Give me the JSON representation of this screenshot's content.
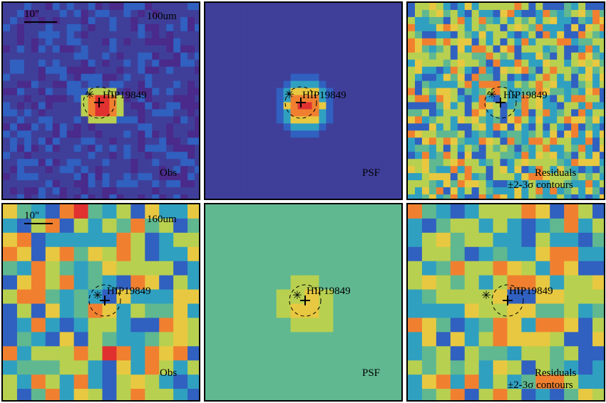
{
  "figure": {
    "top_row": {
      "scale_bar_label": "10\"",
      "band": "100um",
      "target": "HIP19849",
      "obs_label": "Obs",
      "psf_label": "PSF",
      "residual_label": "Residuals",
      "contour_label": "±2-3σ contours"
    },
    "bottom_row": {
      "scale_bar_label": "10\"",
      "band": "160um",
      "target": "HIP19849",
      "obs_label": "Obs",
      "psf_label": "PSF",
      "residual_label": "Residuals",
      "contour_label": "±2-3σ contours"
    }
  },
  "colors": {
    "deep_purple": "#4a2a8a",
    "indigo": "#3f3f9a",
    "blue": "#3060c0",
    "cyan": "#30a0c0",
    "teal_green": "#60b890",
    "yellow_green": "#b8d050",
    "yellow": "#e8c840",
    "orange": "#f08030",
    "red": "#e03030"
  },
  "icons": {
    "star_marker": "asterisk-icon",
    "position_marker": "plus-icon"
  }
}
